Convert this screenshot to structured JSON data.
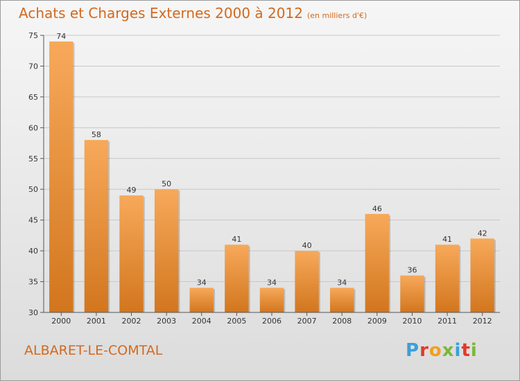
{
  "chart_data": {
    "type": "bar",
    "title": "Achats et Charges Externes 2000 à 2012",
    "subtitle": "(en milliers d'€)",
    "categories": [
      "2000",
      "2001",
      "2002",
      "2003",
      "2004",
      "2005",
      "2006",
      "2007",
      "2008",
      "2009",
      "2010",
      "2011",
      "2012"
    ],
    "values": [
      74,
      58,
      49,
      50,
      34,
      41,
      34,
      40,
      34,
      46,
      36,
      41,
      42
    ],
    "ylim": [
      30,
      75
    ],
    "yticks": [
      30,
      35,
      40,
      45,
      50,
      55,
      60,
      65,
      70,
      75
    ],
    "grid": true,
    "bar_color": "#f0a050"
  },
  "footer": {
    "commune": "ALBARET-LE-COMTAL",
    "logo_letters": [
      "P",
      "r",
      "o",
      "x",
      "i",
      "t",
      "i"
    ],
    "logo_colors": [
      "#3aa0d8",
      "#e03a2a",
      "#f0a020",
      "#7ab83a",
      "#3aa0d8",
      "#e03a2a",
      "#7ab83a"
    ]
  }
}
